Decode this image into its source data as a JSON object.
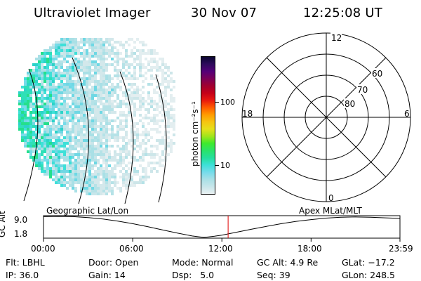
{
  "header": {
    "title": "Ultraviolet Imager",
    "date": "30 Nov 07",
    "time": "12:25:08 UT"
  },
  "colorbar": {
    "label": "photon cm⁻²s⁻¹",
    "ticks": [
      "100",
      "10"
    ],
    "colors": [
      "#e9f0f2",
      "#c8e6ea",
      "#a9e0e6",
      "#76dcea",
      "#3ee0d8",
      "#25df9c",
      "#2ae36a",
      "#3eea2d",
      "#a1e51b",
      "#e6e01b",
      "#f6c411",
      "#ff9a00",
      "#ff5a00",
      "#e8180f",
      "#c40019",
      "#a00030",
      "#7a0058",
      "#540078",
      "#2e0a5c",
      "#0a0630"
    ]
  },
  "polar_plot": {
    "mlt_labels": [
      "12",
      "18",
      "6",
      "0"
    ],
    "lat_labels": [
      "60",
      "70",
      "80"
    ]
  },
  "timeline": {
    "ylabel": "GC Alt",
    "y_ticks": [
      "9.0",
      "1.8"
    ],
    "left_label": "Geographic Lat/Lon",
    "right_label": "Apex MLat/MLT",
    "x_ticks": [
      "00:00",
      "06:00",
      "12:00",
      "18:00",
      "23:59"
    ],
    "current_hour": 12.42,
    "marker_color": "#e00000"
  },
  "chart_data": [
    {
      "type": "line",
      "title": "",
      "xlabel": "",
      "ylabel": "GC Alt",
      "x": [
        0,
        1,
        2,
        3,
        4,
        5,
        6,
        7,
        8,
        9,
        10,
        10.8,
        11.5,
        12,
        13,
        14,
        15,
        16,
        17,
        18,
        19,
        20,
        21,
        22,
        23,
        23.98
      ],
      "series": [
        {
          "values": [
            8.9,
            9.0,
            8.9,
            8.6,
            8.1,
            7.4,
            6.5,
            5.5,
            4.4,
            3.3,
            2.3,
            1.8,
            2.2,
            2.6,
            3.6,
            4.6,
            5.6,
            6.5,
            7.3,
            7.9,
            8.4,
            8.7,
            8.8,
            8.7,
            8.5,
            8.3
          ]
        }
      ],
      "ylim": [
        1.8,
        9.0
      ],
      "xlim": [
        0,
        23.98
      ],
      "x_tick_labels": [
        "00:00",
        "06:00",
        "12:00",
        "18:00",
        "23:59"
      ]
    }
  ],
  "footer": {
    "col1": [
      "Flt: LBHL",
      "IP: 36.0"
    ],
    "col2": [
      "Door: Open",
      "Gain: 14"
    ],
    "col3": [
      "Mode: Normal",
      "Dsp:   5.0"
    ],
    "col4": [
      "GC Alt: 4.9 Re",
      "Seq: 39"
    ],
    "col5": [
      "GLat: −17.2",
      "GLon: 248.5"
    ]
  }
}
